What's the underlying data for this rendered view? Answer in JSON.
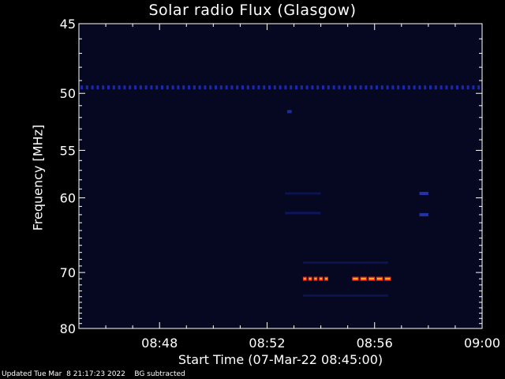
{
  "chart_data": {
    "type": "heatmap",
    "title": "Solar radio Flux (Glasgow)",
    "xlabel": "Start Time (07-Mar-22 08:45:00)",
    "ylabel": "Frequency [MHz]",
    "x_range": [
      "08:45",
      "09:00"
    ],
    "y_range": [
      45,
      80
    ],
    "x_ticks": [
      {
        "label": "08:48",
        "minutes": 3
      },
      {
        "label": "08:52",
        "minutes": 7
      },
      {
        "label": "08:56",
        "minutes": 11
      },
      {
        "label": "09:00",
        "minutes": 15
      }
    ],
    "y_ticks": [
      45,
      50,
      55,
      60,
      70,
      80
    ],
    "background_color": "#050820",
    "features": [
      {
        "kind": "band",
        "freq_mhz": 49.5,
        "t_start": "08:45",
        "t_end": "09:00",
        "color": "#2233cc",
        "intensity": 0.8
      },
      {
        "kind": "burst",
        "freq_mhz": 71.0,
        "t_start": "08:53:20",
        "t_end": "08:54:20",
        "color": "#ff2a1a",
        "intensity": 1.0
      },
      {
        "kind": "burst",
        "freq_mhz": 71.0,
        "t_start": "08:55:10",
        "t_end": "08:56:40",
        "color": "#ff2a1a",
        "intensity": 1.0
      },
      {
        "kind": "burst",
        "freq_mhz": 59.5,
        "t_start": "08:57:40",
        "t_end": "08:58:00",
        "color": "#3344dd",
        "intensity": 0.7
      },
      {
        "kind": "burst",
        "freq_mhz": 62.0,
        "t_start": "08:57:40",
        "t_end": "08:58:00",
        "color": "#3344dd",
        "intensity": 0.7
      },
      {
        "kind": "burst",
        "freq_mhz": 51.5,
        "t_start": "08:52:45",
        "t_end": "08:52:55",
        "color": "#3344dd",
        "intensity": 0.6
      },
      {
        "kind": "faint",
        "freq_mhz": 61.8,
        "t_start": "08:52:40",
        "t_end": "08:54:00",
        "color": "#1a2299",
        "intensity": 0.5
      },
      {
        "kind": "faint",
        "freq_mhz": 59.5,
        "t_start": "08:52:40",
        "t_end": "08:54:00",
        "color": "#1a2299",
        "intensity": 0.4
      },
      {
        "kind": "faint",
        "freq_mhz": 68.5,
        "t_start": "08:53:20",
        "t_end": "08:56:30",
        "color": "#1a2299",
        "intensity": 0.4
      },
      {
        "kind": "faint",
        "freq_mhz": 73.8,
        "t_start": "08:53:20",
        "t_end": "08:56:30",
        "color": "#1a2299",
        "intensity": 0.4
      }
    ]
  },
  "footer": "Updated Tue Mar  8 21:17:23 2022    BG subtracted"
}
